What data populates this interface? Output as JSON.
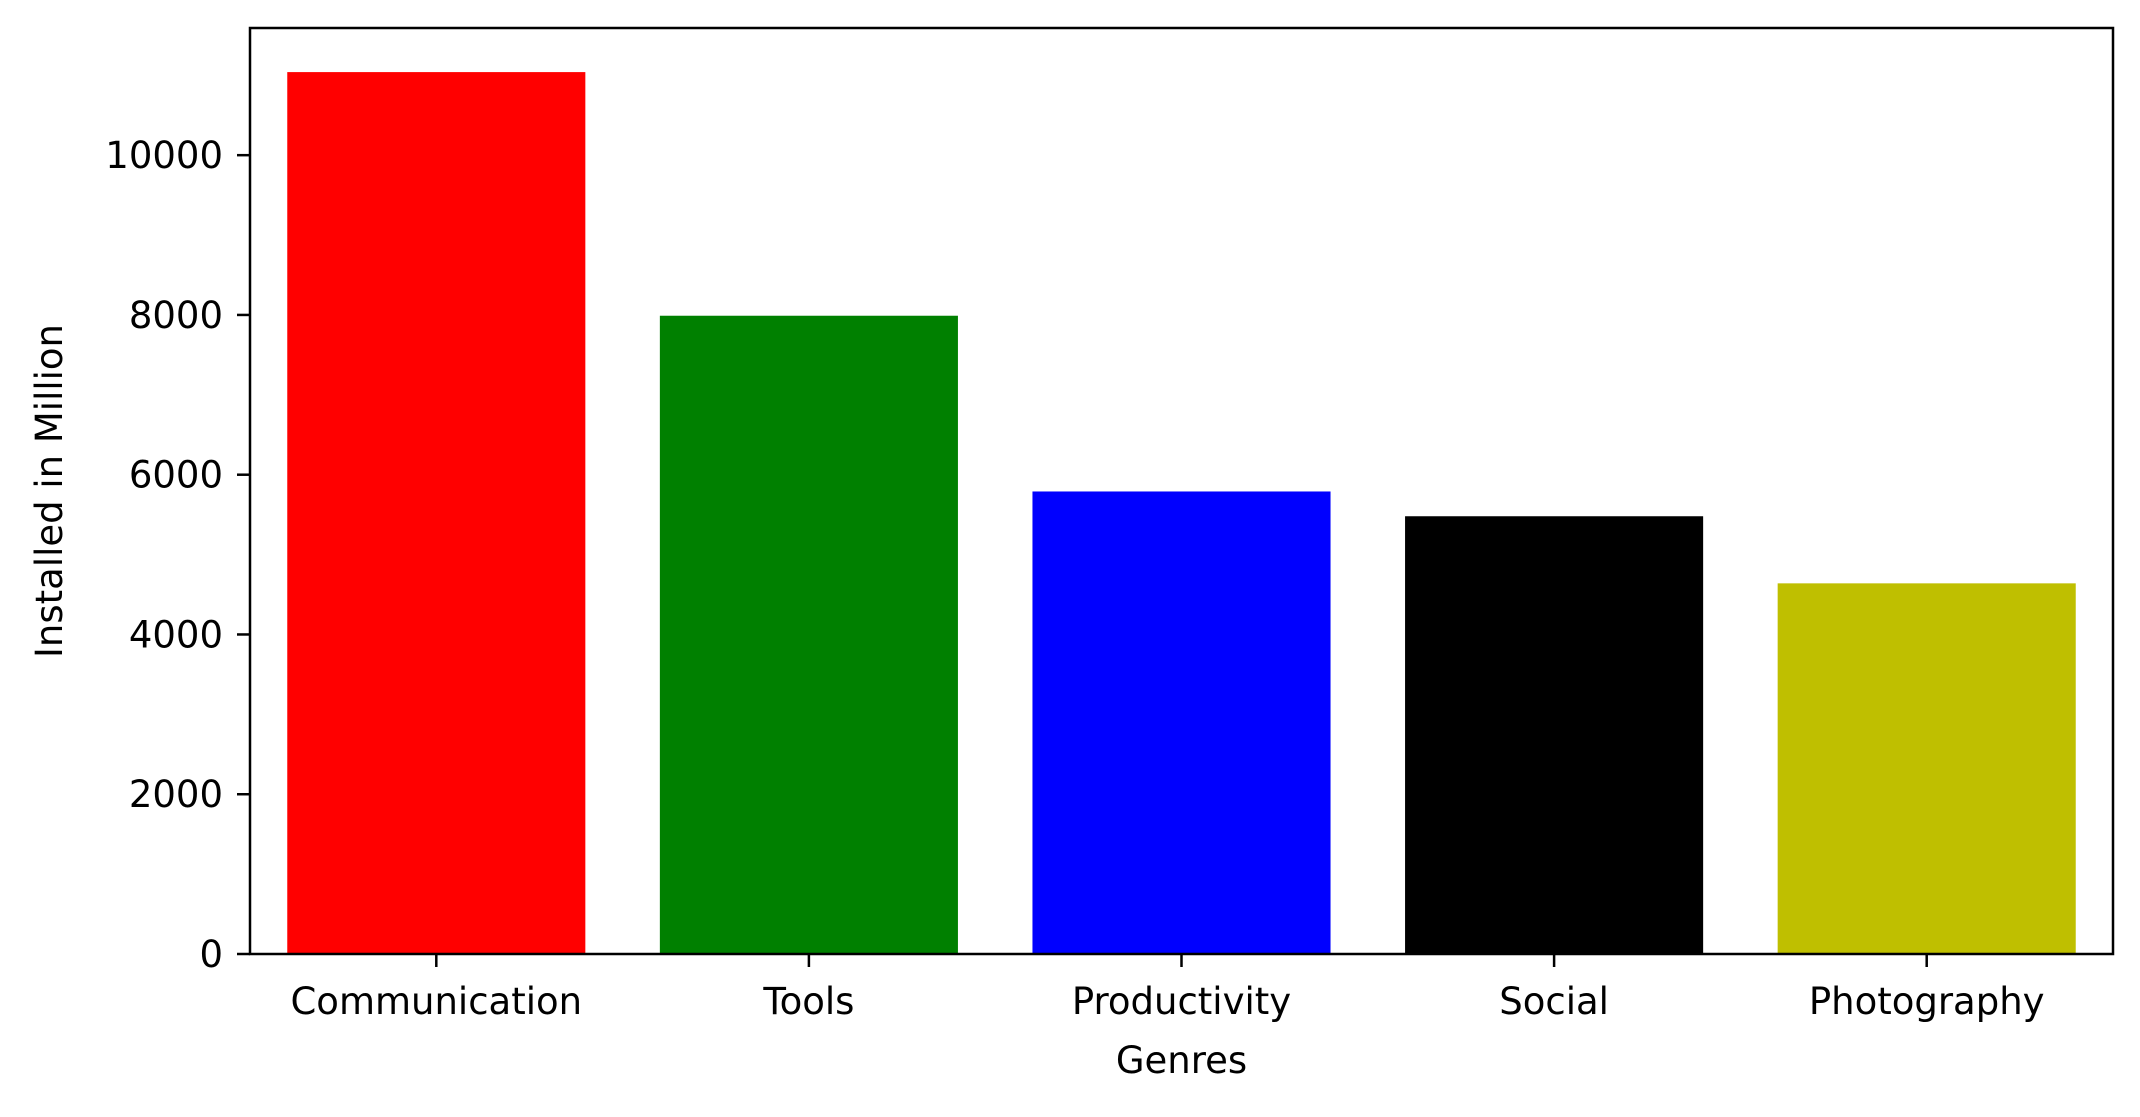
{
  "chart_data": {
    "type": "bar",
    "title": "",
    "xlabel": "Genres",
    "ylabel": "Installed in Million",
    "categories": [
      "Communication",
      "Tools",
      "Productivity",
      "Social",
      "Photography"
    ],
    "values": [
      11040,
      7990,
      5790,
      5480,
      4640
    ],
    "colors": [
      "#ff0000",
      "#008000",
      "#0000ff",
      "#000000",
      "#bfbf00"
    ],
    "yticks": [
      "0",
      "2000",
      "4000",
      "6000",
      "8000",
      "10000"
    ],
    "ylim": [
      0,
      11592
    ],
    "grid": false,
    "legend": "none"
  }
}
